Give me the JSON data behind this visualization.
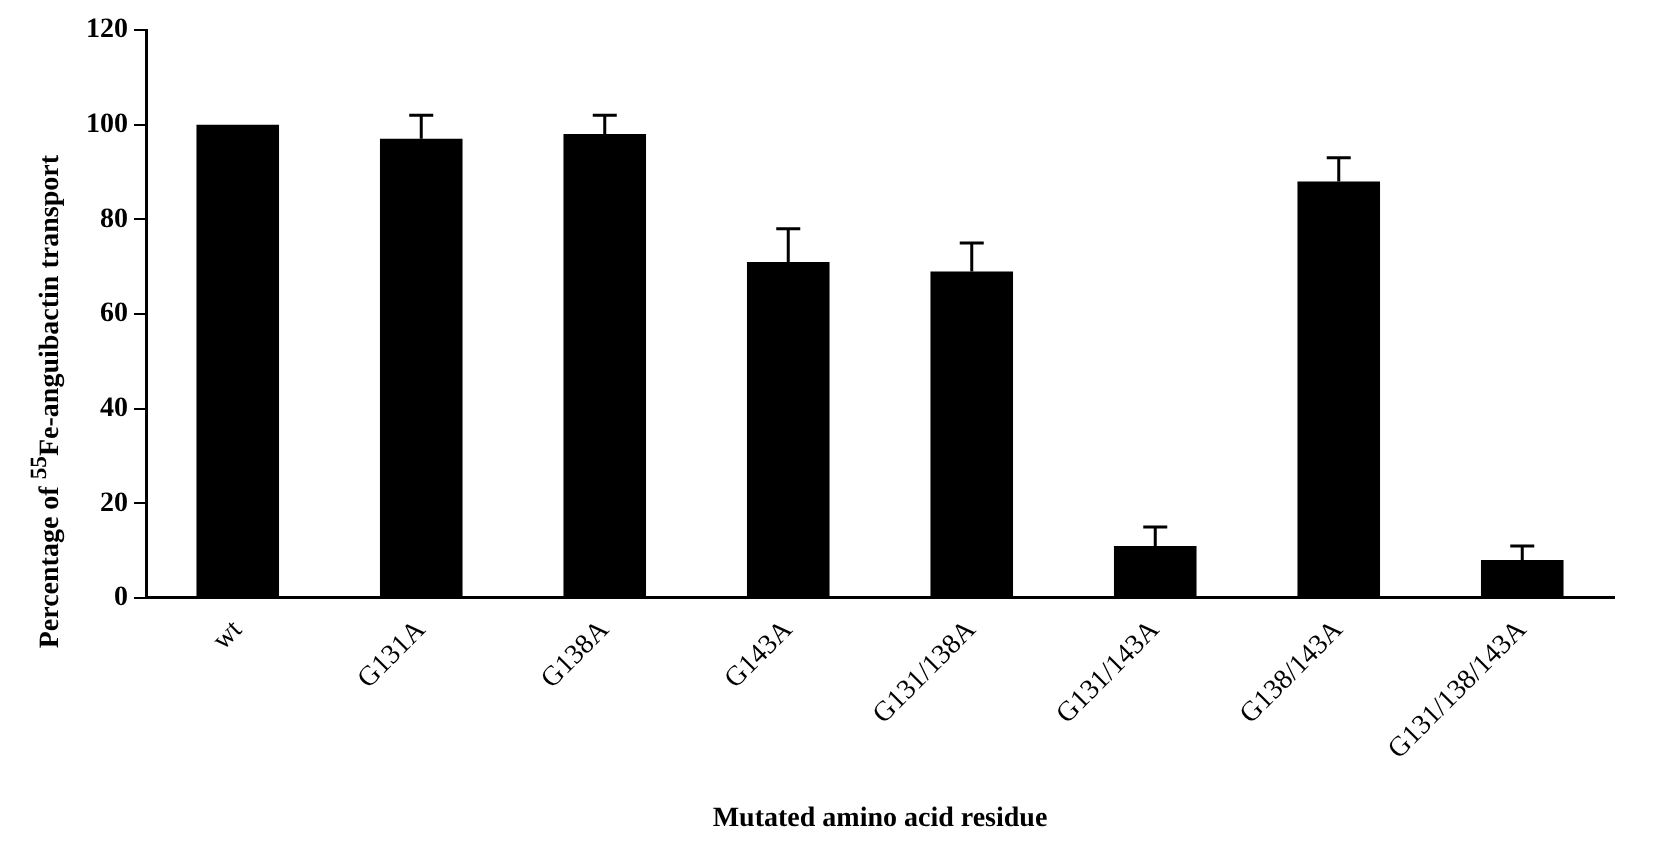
{
  "chart_data": {
    "type": "bar",
    "xlabel": "Mutated amino acid residue",
    "ylabel": "Percentage of $^{55}$Fe-anguibactin transport",
    "categories": [
      "wt",
      "G131A",
      "G138A",
      "G143A",
      "G131/138A",
      "G131/143A",
      "G138/143A",
      "G131/138/143A"
    ],
    "values": [
      100,
      97,
      98,
      71,
      69,
      11,
      88,
      8
    ],
    "errors": [
      null,
      [
        97,
        102
      ],
      [
        98,
        102
      ],
      [
        71,
        78
      ],
      [
        69,
        75
      ],
      [
        11,
        15
      ],
      [
        88,
        93
      ],
      [
        8,
        11
      ]
    ],
    "color": "#000000",
    "ylim": [
      0,
      120
    ],
    "yticks": [
      0,
      20,
      40,
      60,
      80,
      100,
      120
    ],
    "grid": false,
    "legend": false
  }
}
